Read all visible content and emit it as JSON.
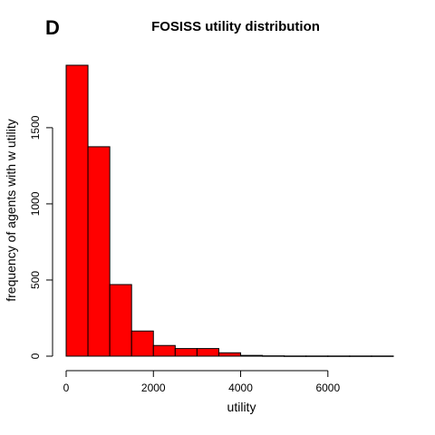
{
  "panel_label": "D",
  "chart_data": {
    "type": "bar",
    "title": "FOSISS utility distribution",
    "xlabel": "utility",
    "ylabel": "frequency of agents with w utility",
    "bin_edges": [
      0,
      500,
      1000,
      1500,
      2000,
      2500,
      3000,
      3500,
      4000,
      4500,
      5000,
      5500,
      6000,
      6500,
      7000,
      7500
    ],
    "values": [
      1910,
      1375,
      470,
      165,
      70,
      50,
      50,
      22,
      5,
      2,
      1,
      1,
      1,
      1,
      1
    ],
    "xlim": [
      0,
      7500
    ],
    "ylim": [
      0,
      1910
    ],
    "xticks": [
      0,
      2000,
      4000,
      6000
    ],
    "yticks": [
      0,
      500,
      1000,
      1500
    ],
    "bar_color": "#ff0000",
    "bar_edge_color": "#000000",
    "grid": false,
    "legend": "none"
  }
}
